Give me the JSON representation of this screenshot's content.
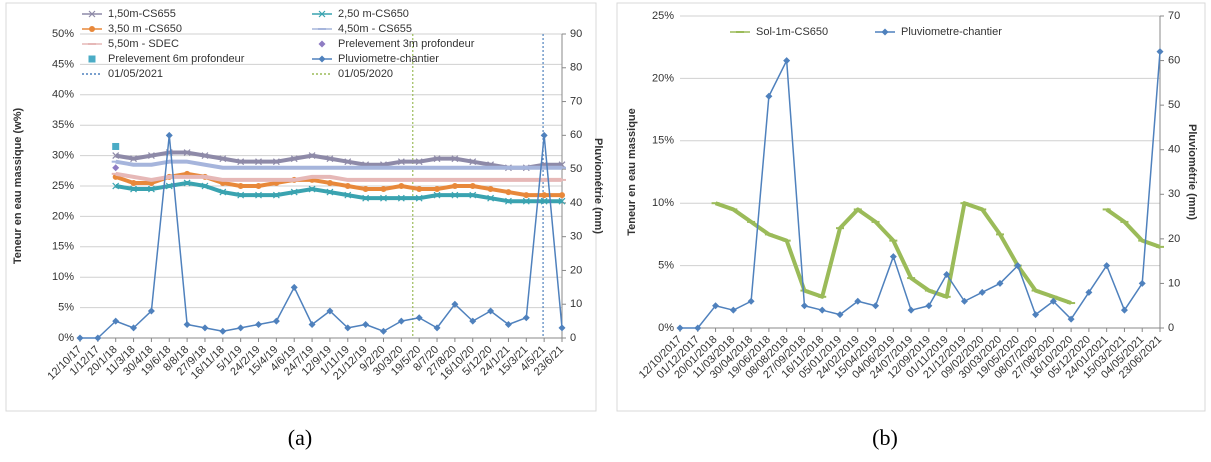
{
  "captions": [
    "(a)",
    "(b)"
  ],
  "chart_data": [
    {
      "type": "line",
      "ylabel": "Teneur en eau massique (w%)",
      "y2label": "Pluviométrie (mm)",
      "categories": [
        "12/10/17",
        "1/12/17",
        "20/1/18",
        "11/3/18",
        "30/4/18",
        "19/6/18",
        "8/8/18",
        "27/9/18",
        "16/11/18",
        "5/1/19",
        "24/2/19",
        "15/4/19",
        "4/6/19",
        "24/7/19",
        "12/9/19",
        "1/11/19",
        "21/12/19",
        "9/2/20",
        "30/3/20",
        "19/5/20",
        "8/7/20",
        "27/8/20",
        "16/10/20",
        "5/12/20",
        "24/1/21",
        "15/3/21",
        "4/5/21",
        "23/6/21"
      ],
      "ylim": [
        0,
        50
      ],
      "yticks": [
        {
          "value": 0,
          "label": "0%"
        },
        {
          "value": 5,
          "label": "5%"
        },
        {
          "value": 10,
          "label": "10%"
        },
        {
          "value": 15,
          "label": "15%"
        },
        {
          "value": 20,
          "label": "20%"
        },
        {
          "value": 25,
          "label": "25%"
        },
        {
          "value": 30,
          "label": "30%"
        },
        {
          "value": 35,
          "label": "35%"
        },
        {
          "value": 40,
          "label": "40%"
        },
        {
          "value": 45,
          "label": "45%"
        },
        {
          "value": 50,
          "label": "50%"
        }
      ],
      "y2lim": [
        0,
        90
      ],
      "y2ticks": [
        0,
        10,
        20,
        30,
        40,
        50,
        60,
        70,
        80,
        90
      ],
      "grid": true,
      "series": [
        {
          "name": "1,50m-CS655",
          "color": "#8e8aa8",
          "marker": "x",
          "line": true,
          "values": [
            null,
            null,
            30,
            29.5,
            30,
            30.5,
            30.5,
            30,
            29.5,
            29,
            29,
            29,
            29.5,
            30,
            29.5,
            29,
            28.5,
            28.5,
            29,
            29,
            29.5,
            29.5,
            29,
            28.5,
            28,
            28,
            28.5,
            28.5
          ]
        },
        {
          "name": "2,50 m-CS650",
          "color": "#3aa3b0",
          "marker": "x",
          "line": true,
          "values": [
            null,
            null,
            25,
            24.5,
            24.5,
            25,
            25.5,
            25,
            24,
            23.5,
            23.5,
            23.5,
            24,
            24.5,
            24,
            23.5,
            23,
            23,
            23,
            23,
            23.5,
            23.5,
            23.5,
            23,
            22.5,
            22.5,
            22.5,
            22.5
          ]
        },
        {
          "name": "3,50 m -CS650",
          "color": "#e8883a",
          "marker": "circle",
          "line": true,
          "values": [
            null,
            null,
            26.5,
            25.5,
            25.5,
            26.5,
            27,
            26.5,
            25.5,
            25,
            25,
            25.5,
            26,
            26,
            25.5,
            25,
            24.5,
            24.5,
            25,
            24.5,
            24.5,
            25,
            25,
            24.5,
            24,
            23.5,
            23.5,
            23.5
          ]
        },
        {
          "name": "4,50m - CS655",
          "color": "#a6b5dc",
          "marker": "dash",
          "line": true,
          "values": [
            null,
            null,
            29,
            28.5,
            28.5,
            29,
            29,
            28.5,
            28,
            28,
            28,
            28,
            28,
            28,
            28,
            28,
            28,
            28,
            28,
            28,
            28,
            28,
            28,
            28,
            28,
            28,
            28,
            28
          ]
        },
        {
          "name": "5,50m - SDEC",
          "color": "#e6b8b7",
          "marker": "dash",
          "line": true,
          "values": [
            null,
            null,
            27,
            26.5,
            26,
            26.5,
            26.5,
            26.5,
            26,
            26,
            26,
            26,
            26,
            26.5,
            26.5,
            26,
            26,
            26,
            26,
            26,
            26,
            26,
            26,
            26,
            26,
            26,
            26,
            26
          ]
        },
        {
          "name": "Prelevement 3m profondeur",
          "color": "#8e7cc3",
          "marker": "diamond",
          "line": false,
          "values": [
            null,
            null,
            28,
            null,
            null,
            null,
            null,
            null,
            null,
            null,
            null,
            null,
            null,
            null,
            null,
            null,
            null,
            null,
            null,
            null,
            null,
            null,
            null,
            null,
            null,
            null,
            null,
            null
          ]
        },
        {
          "name": "Prelevement 6m profondeur",
          "color": "#4bacc6",
          "marker": "square",
          "line": false,
          "values": [
            null,
            null,
            31.5,
            null,
            null,
            null,
            null,
            null,
            null,
            null,
            null,
            null,
            null,
            null,
            null,
            null,
            null,
            null,
            null,
            null,
            null,
            null,
            null,
            null,
            null,
            null,
            null,
            null
          ]
        },
        {
          "name": "Pluviometre-chantier",
          "color": "#4f81bd",
          "marker": "diamond",
          "line": true,
          "axis": "y2",
          "values": [
            0,
            0,
            5,
            3,
            8,
            60,
            4,
            3,
            2,
            3,
            4,
            5,
            15,
            4,
            8,
            3,
            4,
            2,
            5,
            6,
            3,
            10,
            5,
            8,
            4,
            6,
            60,
            3
          ]
        }
      ],
      "date_lines": [
        {
          "name": "01/05/2021",
          "color": "#4f81bd"
        },
        {
          "name": "01/05/2020",
          "color": "#9bbb59"
        }
      ]
    },
    {
      "type": "line",
      "ylabel": "Teneur en eau massique",
      "y2label": "Pluviométrie (mm)",
      "categories": [
        "12/10/2017",
        "01/12/2017",
        "20/01/2018",
        "11/03/2018",
        "30/04/2018",
        "19/06/2018",
        "08/08/2018",
        "27/09/2018",
        "16/11/2018",
        "05/01/2019",
        "24/02/2019",
        "15/04/2019",
        "04/06/2019",
        "24/07/2019",
        "12/09/2019",
        "01/11/2019",
        "21/12/2019",
        "09/02/2020",
        "30/03/2020",
        "19/05/2020",
        "08/07/2020",
        "27/08/2020",
        "16/10/2020",
        "05/12/2020",
        "24/01/2021",
        "15/03/2021",
        "04/05/2021",
        "23/06/2021"
      ],
      "ylim": [
        0,
        25
      ],
      "yticks": [
        {
          "value": 0,
          "label": "0%"
        },
        {
          "value": 5,
          "label": "5%"
        },
        {
          "value": 10,
          "label": "10%"
        },
        {
          "value": 15,
          "label": "15%"
        },
        {
          "value": 20,
          "label": "20%"
        },
        {
          "value": 25,
          "label": "25%"
        }
      ],
      "y2lim": [
        0,
        70
      ],
      "y2ticks": [
        0,
        10,
        20,
        30,
        40,
        50,
        60,
        70
      ],
      "grid": true,
      "series": [
        {
          "name": "Sol-1m-CS650",
          "color": "#9bbb59",
          "marker": "dash",
          "line": true,
          "values": [
            null,
            null,
            10,
            9.5,
            8.5,
            7.5,
            7,
            3,
            2.5,
            8,
            9.5,
            8.5,
            7,
            4,
            3,
            2.5,
            10,
            9.5,
            7.5,
            5,
            3,
            2.5,
            2,
            null,
            9.5,
            8.5,
            7,
            6.5
          ]
        },
        {
          "name": "Pluviometre-chantier",
          "color": "#4f81bd",
          "marker": "diamond",
          "line": true,
          "axis": "y2",
          "values": [
            0,
            0,
            5,
            4,
            6,
            52,
            60,
            5,
            4,
            3,
            6,
            5,
            16,
            4,
            5,
            12,
            6,
            8,
            10,
            14,
            3,
            6,
            2,
            8,
            14,
            4,
            10,
            62
          ]
        }
      ]
    }
  ]
}
